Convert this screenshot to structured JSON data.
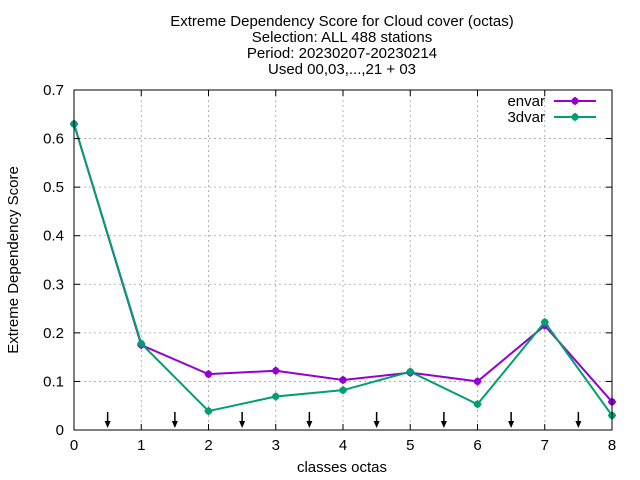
{
  "chart_data": {
    "type": "line",
    "title_lines": [
      "Extreme Dependency Score  for Cloud cover (octas)",
      "Selection: ALL    488 stations",
      "Period: 20230207-20230214",
      "Used 00,03,...,21 + 03"
    ],
    "xlabel": "classes octas",
    "ylabel": "Extreme Dependency Score",
    "xlim": [
      0,
      8
    ],
    "ylim": [
      0,
      0.7
    ],
    "xticks": [
      0,
      1,
      2,
      3,
      4,
      5,
      6,
      7,
      8
    ],
    "yticks": [
      0,
      0.1,
      0.2,
      0.3,
      0.4,
      0.5,
      0.6,
      0.7
    ],
    "ytick_labels": [
      "0",
      "0.1",
      "0.2",
      "0.3",
      "0.4",
      "0.5",
      "0.6",
      "0.7"
    ],
    "grid": true,
    "legend_position": "top-right",
    "x": [
      0,
      1,
      2,
      3,
      4,
      5,
      6,
      7,
      8
    ],
    "series": [
      {
        "name": "envar",
        "color": "#9400d3",
        "values": [
          0.63,
          0.175,
          0.115,
          0.122,
          0.103,
          0.118,
          0.1,
          0.215,
          0.058
        ]
      },
      {
        "name": "3dvar",
        "color": "#009e73",
        "values": [
          0.63,
          0.178,
          0.039,
          0.069,
          0.082,
          0.12,
          0.053,
          0.222,
          0.03
        ]
      }
    ],
    "arrows_x": [
      0.5,
      1.5,
      2.5,
      3.5,
      4.5,
      5.5,
      6.5,
      7.5
    ]
  }
}
